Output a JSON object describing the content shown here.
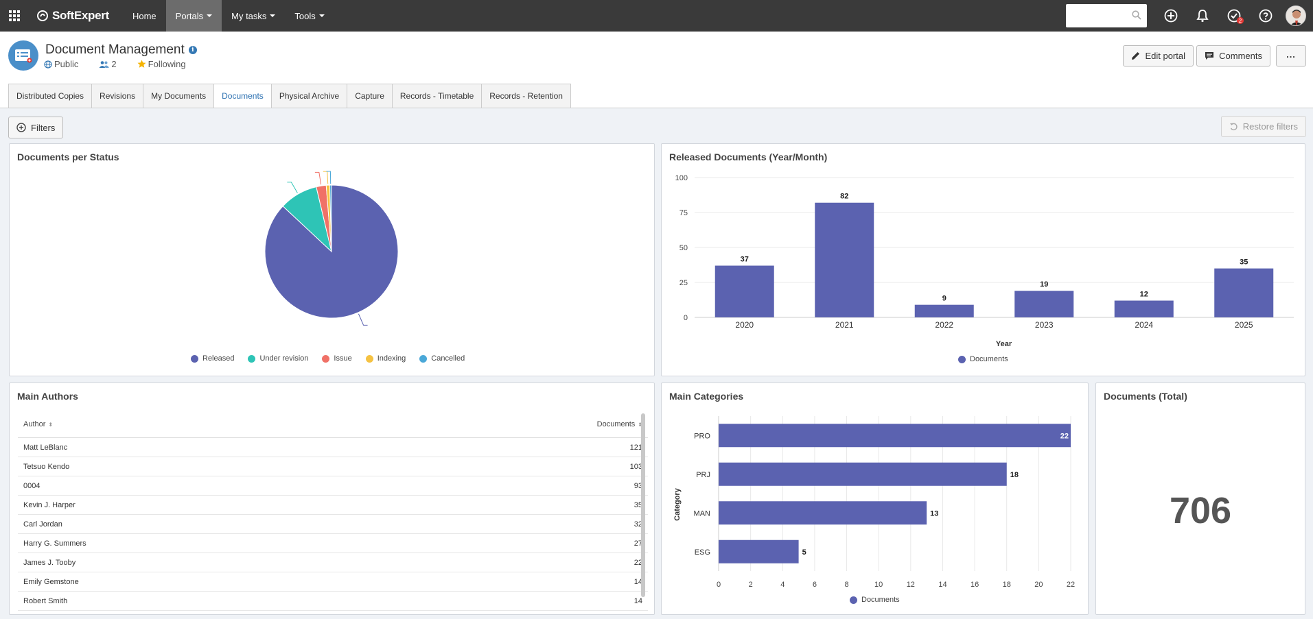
{
  "topbar": {
    "brand": "SoftExpert",
    "nav": [
      {
        "label": "Home",
        "caret": false,
        "active": false
      },
      {
        "label": "Portals",
        "caret": true,
        "active": true
      },
      {
        "label": "My tasks",
        "caret": true,
        "active": false
      },
      {
        "label": "Tools",
        "caret": true,
        "active": false
      }
    ],
    "search_value": "",
    "tasks_badge": "2"
  },
  "portal": {
    "title": "Document Management",
    "visibility": "Public",
    "members": "2",
    "following": "Following",
    "edit_label": "Edit portal",
    "comments_label": "Comments",
    "more_label": "..."
  },
  "tabs": [
    {
      "label": "Distributed Copies",
      "active": false
    },
    {
      "label": "Revisions",
      "active": false
    },
    {
      "label": "My Documents",
      "active": false
    },
    {
      "label": "Documents",
      "active": true
    },
    {
      "label": "Physical Archive",
      "active": false
    },
    {
      "label": "Capture",
      "active": false
    },
    {
      "label": "Records - Timetable",
      "active": false
    },
    {
      "label": "Records - Retention",
      "active": false
    }
  ],
  "filters": {
    "filters_label": "Filters",
    "restore_label": "Restore filters"
  },
  "panels": {
    "status_title": "Documents per Status",
    "released_title": "Released Documents (Year/Month)",
    "authors_title": "Main Authors",
    "categories_title": "Main Categories",
    "total_title": "Documents (Total)"
  },
  "colors": {
    "primary": "#5b62b0",
    "teal": "#2ec4b6",
    "salmon": "#f07167",
    "yellow": "#f5c242",
    "blue": "#4aa8d8"
  },
  "chart_data": [
    {
      "type": "pie",
      "title": "Documents per Status",
      "labels": [
        "Released",
        "Under revision",
        "Issue",
        "Indexing",
        "Cancelled"
      ],
      "values": [
        614,
        66,
        17,
        6,
        3
      ],
      "colors": [
        "#5b62b0",
        "#2ec4b6",
        "#f07167",
        "#f5c242",
        "#4aa8d8"
      ],
      "legend": "bottom"
    },
    {
      "type": "bar",
      "title": "Released Documents (Year/Month)",
      "categories": [
        "2020",
        "2021",
        "2022",
        "2023",
        "2024",
        "2025"
      ],
      "series": [
        {
          "name": "Documents",
          "values": [
            37,
            82,
            9,
            19,
            12,
            35
          ]
        }
      ],
      "xlabel": "Year",
      "ylabel": "",
      "ylim": [
        0,
        100
      ],
      "yticks": [
        0,
        25,
        50,
        75,
        100
      ],
      "grid": true,
      "legend": "bottom"
    },
    {
      "type": "bar",
      "orientation": "horizontal",
      "title": "Main Categories",
      "categories": [
        "PRO",
        "PRJ",
        "MAN",
        "ESG"
      ],
      "series": [
        {
          "name": "Documents",
          "values": [
            22,
            18,
            13,
            5
          ]
        }
      ],
      "xlabel": "",
      "ylabel": "Category",
      "xlim": [
        0,
        22
      ],
      "xticks": [
        0,
        2,
        4,
        6,
        8,
        10,
        12,
        14,
        16,
        18,
        20,
        22
      ],
      "grid": true,
      "legend": "bottom"
    },
    {
      "type": "table",
      "title": "Main Authors",
      "columns": [
        "Author",
        "Documents"
      ],
      "rows": [
        [
          "Matt LeBlanc",
          "121"
        ],
        [
          "Tetsuo Kendo",
          "103"
        ],
        [
          "0004",
          "93"
        ],
        [
          "Kevin J. Harper",
          "35"
        ],
        [
          "Carl Jordan",
          "32"
        ],
        [
          "Harry G. Summers",
          "27"
        ],
        [
          "James J. Tooby",
          "22"
        ],
        [
          "Emily Gemstone",
          "14"
        ],
        [
          "Robert Smith",
          "14"
        ]
      ]
    }
  ],
  "total": {
    "value": "706"
  }
}
